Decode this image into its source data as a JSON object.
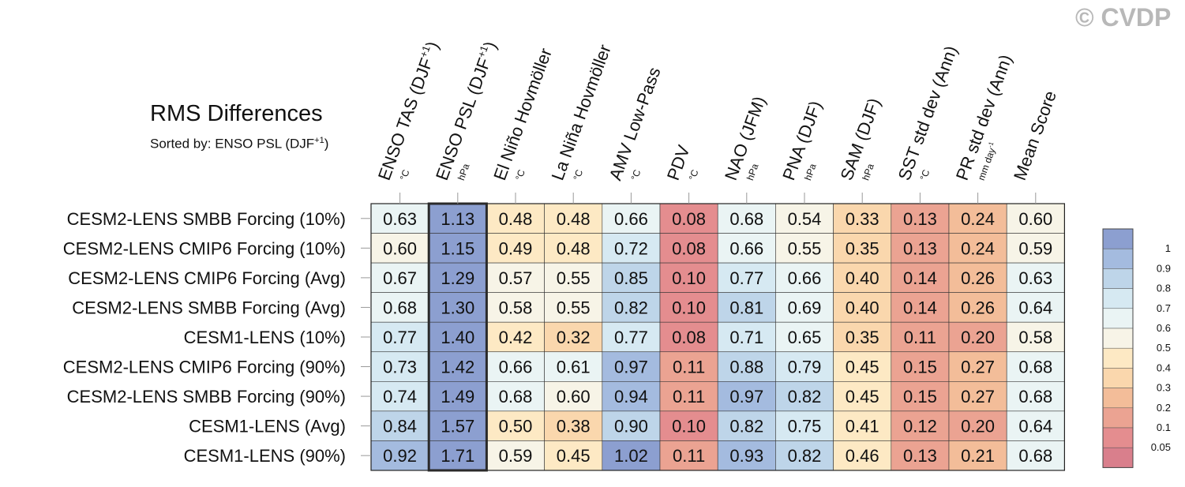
{
  "header": {
    "title": "RMS Differences",
    "subtitle": "Sorted by: ENSO PSL (DJF",
    "subtitle_sup": "+1",
    "subtitle_end": ")",
    "copyright": "© CVDP"
  },
  "chart_data": {
    "type": "heatmap",
    "columns": [
      {
        "label": "ENSO TAS (DJF",
        "sup": "+1",
        "label_end": ")",
        "unit": "°C"
      },
      {
        "label": "ENSO PSL (DJF",
        "sup": "+1",
        "label_end": ")",
        "unit": "hPa"
      },
      {
        "label": "El Niño Hovmöller",
        "unit": "°C"
      },
      {
        "label": "La Niña Hovmöller",
        "unit": "°C"
      },
      {
        "label": "AMV Low-Pass",
        "unit": "°C"
      },
      {
        "label": "PDV",
        "unit": "°C"
      },
      {
        "label": "NAO (JFM)",
        "unit": "hPa"
      },
      {
        "label": "PNA (DJF)",
        "unit": "hPa"
      },
      {
        "label": "SAM (DJF)",
        "unit": "hPa"
      },
      {
        "label": "SST std dev (Ann)",
        "unit": "°C"
      },
      {
        "label": "PR std dev (Ann)",
        "unit": "mm day",
        "unit_sup": "-1"
      },
      {
        "label": "Mean Score",
        "unit": ""
      }
    ],
    "rows": [
      {
        "label": "CESM2-LENS SMBB Forcing (10%)",
        "values": [
          "0.63",
          "1.13",
          "0.48",
          "0.48",
          "0.66",
          "0.08",
          "0.68",
          "0.54",
          "0.33",
          "0.13",
          "0.24",
          "0.60"
        ]
      },
      {
        "label": "CESM2-LENS CMIP6 Forcing (10%)",
        "values": [
          "0.60",
          "1.15",
          "0.49",
          "0.48",
          "0.72",
          "0.08",
          "0.66",
          "0.55",
          "0.35",
          "0.13",
          "0.24",
          "0.59"
        ]
      },
      {
        "label": "CESM2-LENS CMIP6 Forcing (Avg)",
        "values": [
          "0.67",
          "1.29",
          "0.57",
          "0.55",
          "0.85",
          "0.10",
          "0.77",
          "0.66",
          "0.40",
          "0.14",
          "0.26",
          "0.63"
        ]
      },
      {
        "label": "CESM2-LENS SMBB Forcing (Avg)",
        "values": [
          "0.68",
          "1.30",
          "0.58",
          "0.55",
          "0.82",
          "0.10",
          "0.81",
          "0.69",
          "0.40",
          "0.14",
          "0.26",
          "0.64"
        ]
      },
      {
        "label": "CESM1-LENS (10%)",
        "values": [
          "0.77",
          "1.40",
          "0.42",
          "0.32",
          "0.77",
          "0.08",
          "0.71",
          "0.65",
          "0.35",
          "0.11",
          "0.20",
          "0.58"
        ]
      },
      {
        "label": "CESM2-LENS CMIP6 Forcing (90%)",
        "values": [
          "0.73",
          "1.42",
          "0.66",
          "0.61",
          "0.97",
          "0.11",
          "0.88",
          "0.79",
          "0.45",
          "0.15",
          "0.27",
          "0.68"
        ]
      },
      {
        "label": "CESM2-LENS SMBB Forcing (90%)",
        "values": [
          "0.74",
          "1.49",
          "0.68",
          "0.60",
          "0.94",
          "0.11",
          "0.97",
          "0.82",
          "0.45",
          "0.15",
          "0.27",
          "0.68"
        ]
      },
      {
        "label": "CESM1-LENS (Avg)",
        "values": [
          "0.84",
          "1.57",
          "0.50",
          "0.38",
          "0.90",
          "0.10",
          "0.82",
          "0.75",
          "0.41",
          "0.12",
          "0.20",
          "0.64"
        ]
      },
      {
        "label": "CESM1-LENS (90%)",
        "values": [
          "0.92",
          "1.71",
          "0.59",
          "0.45",
          "1.02",
          "0.11",
          "0.93",
          "0.82",
          "0.46",
          "0.13",
          "0.21",
          "0.68"
        ]
      }
    ],
    "sorted_column_index": 1,
    "colorbar": {
      "levels": [
        "1",
        "0.9",
        "0.8",
        "0.7",
        "0.6",
        "0.5",
        "0.4",
        "0.3",
        "0.2",
        "0.1",
        "0.05"
      ],
      "colors": [
        "#8c9fd0",
        "#a4bbdf",
        "#bed5e9",
        "#d6e9f2",
        "#eaf4f4",
        "#f7f4e7",
        "#fde9c4",
        "#fad7ad",
        "#f3bd99",
        "#eba392",
        "#e48d8f",
        "#d97f8c"
      ]
    },
    "grid": false
  }
}
